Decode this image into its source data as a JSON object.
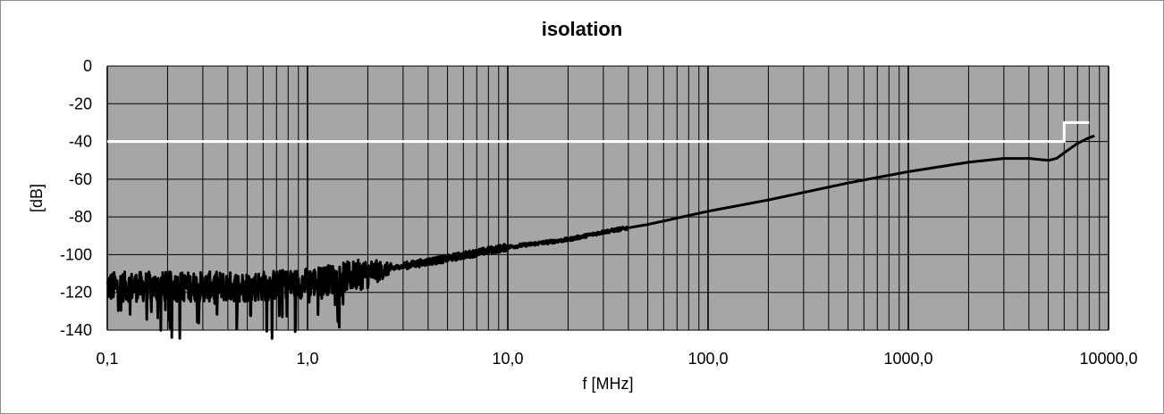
{
  "chart_data": {
    "type": "line",
    "title": "isolation",
    "xlabel": "f [MHz]",
    "ylabel": "[dB]",
    "x_scale": "log",
    "xlim": [
      0.1,
      10000
    ],
    "ylim": [
      -140,
      0
    ],
    "x_tick_labels": [
      "0,1",
      "1,0",
      "10,0",
      "100,0",
      "1000,0",
      "10000,0"
    ],
    "y_tick_labels": [
      "0",
      "-20",
      "-40",
      "-60",
      "-80",
      "-100",
      "-120",
      "-140"
    ],
    "grid": true,
    "legend": "none",
    "colors": {
      "plot_background": "#a6a6a6",
      "gridlines": "#000000",
      "measured_series": "#000000",
      "limit_series": "#ffffff"
    },
    "series": [
      {
        "role": "measured",
        "noise_band_upto_MHz": 3,
        "x": [
          0.1,
          0.2,
          0.5,
          1,
          2,
          3,
          5,
          7,
          10,
          20,
          30,
          50,
          100,
          200,
          500,
          1000,
          2000,
          3000,
          4000,
          5000,
          5500,
          6000,
          7000,
          8000,
          8500
        ],
        "y": [
          -117,
          -117,
          -117,
          -115,
          -110,
          -106,
          -102,
          -99,
          -96,
          -92,
          -88,
          -84,
          -77,
          -71,
          -62,
          -56,
          -51,
          -49,
          -49,
          -50,
          -49,
          -46,
          -41,
          -38,
          -37
        ]
      },
      {
        "role": "limit",
        "x": [
          0.1,
          6000,
          6000,
          8000
        ],
        "y": [
          -40,
          -40,
          -30,
          -30
        ]
      }
    ]
  }
}
